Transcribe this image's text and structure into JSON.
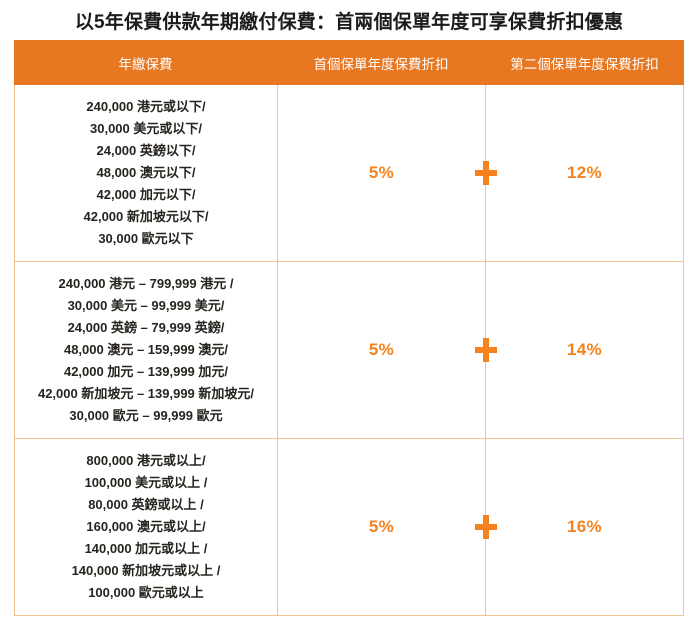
{
  "title": "以5年保費供款年期繳付保費：首兩個保單年度可享保費折扣優惠",
  "colors": {
    "header_background": "#E87722",
    "accent_orange": "#F5821F",
    "grid_line": "#F3C493",
    "body_text": "#27241F"
  },
  "table": {
    "headers": [
      "年繳保費",
      "首個保單年度保費折扣",
      "第二個保單年度保費折扣"
    ],
    "plus_symbol": "+",
    "rows": [
      {
        "annual_premium_lines": [
          "240,000 港元或以下/",
          "30,000 美元或以下/",
          "24,000 英鎊以下/",
          "48,000 澳元以下/",
          "42,000 加元以下/",
          "42,000 新加坡元以下/",
          "30,000 歐元以下"
        ],
        "first_year_discount": "5%",
        "second_year_discount": "12%"
      },
      {
        "annual_premium_lines": [
          "240,000 港元 – 799,999 港元 /",
          "30,000 美元 – 99,999 美元/",
          "24,000 英鎊 – 79,999 英鎊/",
          "48,000 澳元 – 159,999 澳元/",
          "42,000 加元 – 139,999 加元/",
          "42,000 新加坡元 – 139,999 新加坡元/",
          "30,000 歐元 – 99,999 歐元"
        ],
        "first_year_discount": "5%",
        "second_year_discount": "14%"
      },
      {
        "annual_premium_lines": [
          "800,000 港元或以上/",
          "100,000 美元或以上 /",
          "80,000 英鎊或以上 /",
          "160,000 澳元或以上/",
          "140,000 加元或以上 /",
          "140,000 新加坡元或以上 /",
          "100,000 歐元或以上"
        ],
        "first_year_discount": "5%",
        "second_year_discount": "16%"
      }
    ]
  }
}
